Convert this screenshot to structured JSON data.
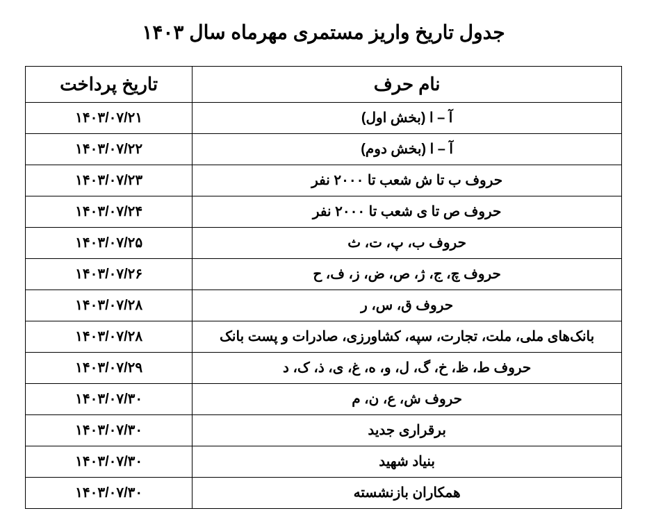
{
  "title": "جدول تاریخ واریز مستمری مهرماه سال ۱۴۰۳",
  "table": {
    "columns": [
      "نام حرف",
      "تاریخ پرداخت"
    ],
    "col_widths_pct": [
      72,
      28
    ],
    "header_fontsize": 26,
    "cell_fontsize": 20,
    "border_color": "#000000",
    "background_color": "#ffffff",
    "text_color": "#000000",
    "rows": [
      {
        "letter": "آ – ا (بخش اول)",
        "date": "۱۴۰۳/۰۷/۲۱"
      },
      {
        "letter": "آ – ا (بخش دوم)",
        "date": "۱۴۰۳/۰۷/۲۲"
      },
      {
        "letter": "حروف ب تا ش شعب تا ۲۰۰۰ نفر",
        "date": "۱۴۰۳/۰۷/۲۳"
      },
      {
        "letter": "حروف ص تا ی شعب تا ۲۰۰۰ نفر",
        "date": "۱۴۰۳/۰۷/۲۴"
      },
      {
        "letter": "حروف ب، پ، ت، ث",
        "date": "۱۴۰۳/۰۷/۲۵"
      },
      {
        "letter": "حروف چ، ج، ژ، ص، ض، ز، ف، ح",
        "date": "۱۴۰۳/۰۷/۲۶"
      },
      {
        "letter": "حروف ق، س، ر",
        "date": "۱۴۰۳/۰۷/۲۸"
      },
      {
        "letter": "بانک‌های ملی، ملت، تجارت، سپه، کشاورزی، صادرات و پست بانک",
        "date": "۱۴۰۳/۰۷/۲۸"
      },
      {
        "letter": "حروف ط، ظ، خ، گ، ل، و، ه، غ، ی، ذ، ک، د",
        "date": "۱۴۰۳/۰۷/۲۹"
      },
      {
        "letter": "حروف ش، ع، ن، م",
        "date": "۱۴۰۳/۰۷/۳۰"
      },
      {
        "letter": "برقراری جدید",
        "date": "۱۴۰۳/۰۷/۳۰"
      },
      {
        "letter": "بنیاد شهید",
        "date": "۱۴۰۳/۰۷/۳۰"
      },
      {
        "letter": "همکاران بازنشسته",
        "date": "۱۴۰۳/۰۷/۳۰"
      }
    ]
  }
}
